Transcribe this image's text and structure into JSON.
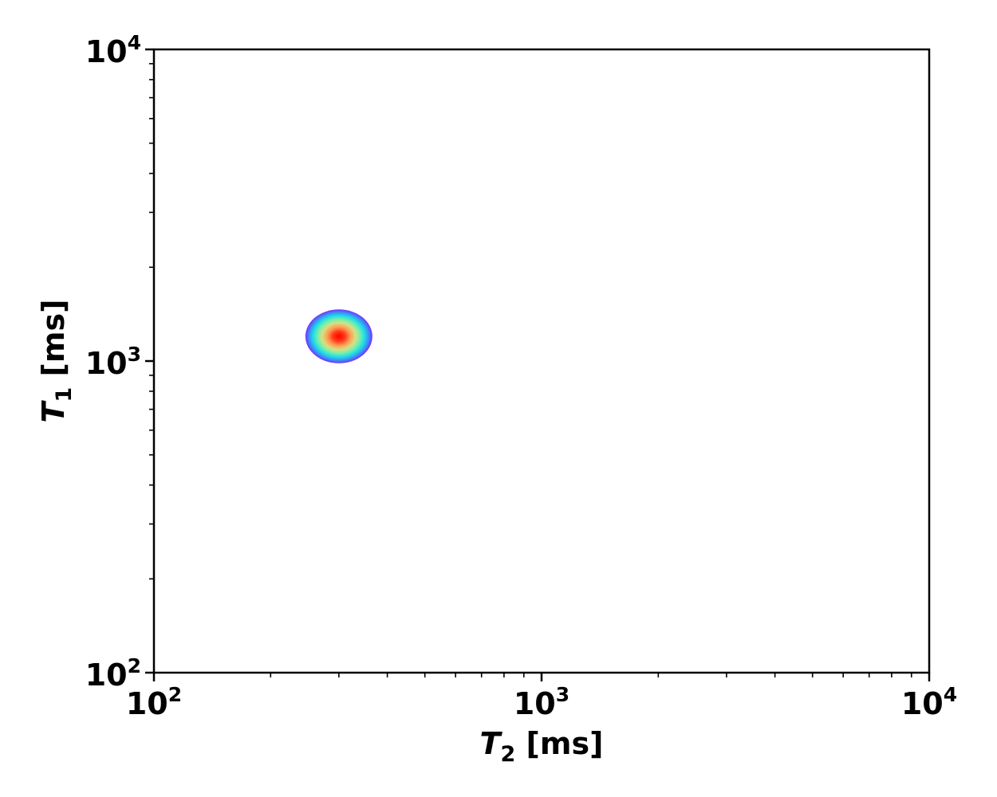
{
  "chart_data": {
    "type": "heatmap",
    "title": "",
    "xlabel": {
      "symbol": "T",
      "subscript": "2",
      "unit": "[ms]"
    },
    "ylabel": {
      "symbol": "T",
      "subscript": "1",
      "unit": "[ms]"
    },
    "xscale": "log",
    "yscale": "log",
    "xlim": [
      100,
      10000
    ],
    "ylim": [
      100,
      10000
    ],
    "x_ticks": [
      {
        "value": 100,
        "base": "10",
        "exp": "2"
      },
      {
        "value": 1000,
        "base": "10",
        "exp": "3"
      },
      {
        "value": 10000,
        "base": "10",
        "exp": "4"
      }
    ],
    "y_ticks": [
      {
        "value": 100,
        "base": "10",
        "exp": "2"
      },
      {
        "value": 1000,
        "base": "10",
        "exp": "3"
      },
      {
        "value": 10000,
        "base": "10",
        "exp": "4"
      }
    ],
    "colormap": "rainbow",
    "peaks": [
      {
        "t2_ms": 300,
        "t1_ms": 1200,
        "t2_halfwidth_factor": 1.22,
        "t1_halfwidth_factor": 1.22
      }
    ],
    "grid": false,
    "legend": false,
    "colors": {
      "axis": "#000000",
      "background": "#ffffff"
    }
  }
}
